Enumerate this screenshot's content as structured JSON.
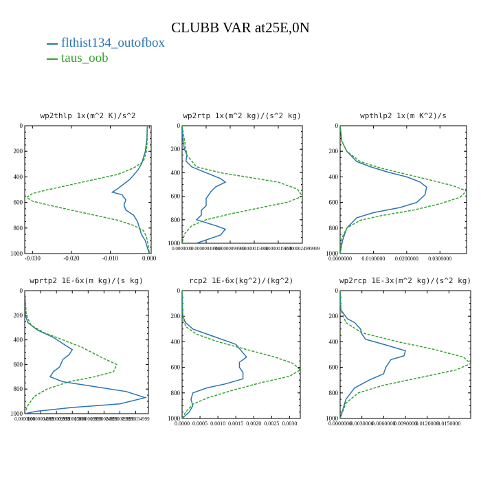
{
  "page": {
    "title": "CLUBB VAR at25E,0N",
    "legend": [
      {
        "label": "flthist134_outofbox",
        "color": "#2b74b3"
      },
      {
        "label": "taus_oob",
        "color": "#35a22f"
      }
    ]
  },
  "chart_data": [
    {
      "type": "line",
      "title": "wp2thlp  1x(m^2 K)/s^2",
      "xlim": [
        -0.032,
        0.0005
      ],
      "ylim": [
        1000,
        0
      ],
      "yticks": [
        0,
        200,
        400,
        600,
        800,
        1000
      ],
      "xticks": [
        -0.03,
        -0.02,
        -0.01,
        0.0
      ],
      "xticklabels": [
        "-0.030",
        "-0.020",
        "-0.010",
        "0.000"
      ],
      "series": [
        {
          "name": "flthist134_outofbox",
          "color": "#2b74b3",
          "dashed": false,
          "x": [
            -0.0005,
            -0.0006,
            -0.0008,
            -0.001,
            -0.0015,
            -0.002,
            -0.003,
            -0.005,
            -0.008,
            -0.0095,
            -0.007,
            -0.006,
            -0.0065,
            -0.006,
            -0.004,
            -0.003,
            -0.0025,
            -0.002,
            -0.001,
            0.0
          ],
          "y": [
            0,
            100,
            150,
            200,
            250,
            300,
            350,
            420,
            490,
            520,
            540,
            580,
            620,
            660,
            700,
            750,
            800,
            850,
            900,
            1000
          ]
        },
        {
          "name": "taus_oob",
          "color": "#35a22f",
          "dashed": true,
          "x": [
            -0.0005,
            -0.0005,
            -0.0007,
            -0.0015,
            -0.004,
            -0.008,
            -0.014,
            -0.02,
            -0.026,
            -0.03,
            -0.0315,
            -0.03,
            -0.026,
            -0.02,
            -0.014,
            -0.008,
            -0.004,
            -0.0015,
            -0.0007,
            -0.0003,
            0.0
          ],
          "y": [
            0,
            100,
            200,
            280,
            330,
            380,
            420,
            460,
            500,
            530,
            560,
            590,
            620,
            660,
            700,
            740,
            780,
            820,
            870,
            930,
            1000
          ]
        }
      ]
    },
    {
      "type": "line",
      "title": "wp2rtp  1x(m^2 kg)/(s^2 kg)",
      "xlim": [
        0,
        2.5e-06
      ],
      "ylim": [
        1000,
        0
      ],
      "yticks": [
        0,
        200,
        400,
        600,
        800,
        1000
      ],
      "xticks": [
        0,
        5e-07,
        1e-06,
        1.5e-06,
        2e-06,
        2.5e-06
      ],
      "xticklabels": [
        "0.0000000",
        "0.00000049999",
        "0.00000099999",
        "0.0000015000",
        "0.0000019999",
        "0.0000024999999"
      ],
      "series": [
        {
          "name": "flthist134_outofbox",
          "color": "#2b74b3",
          "dashed": false,
          "x": [
            0,
            1e-08,
            5e-08,
            1e-07,
            8e-08,
            2e-07,
            5e-07,
            8e-07,
            9e-07,
            7e-07,
            6e-07,
            5e-07,
            5e-07,
            4e-07,
            4e-07,
            3e-07,
            7e-07,
            9e-07,
            8e-07,
            3e-07
          ],
          "y": [
            0,
            100,
            200,
            250,
            300,
            350,
            400,
            450,
            480,
            520,
            560,
            620,
            680,
            720,
            760,
            800,
            850,
            880,
            930,
            1000
          ]
        },
        {
          "name": "taus_oob",
          "color": "#35a22f",
          "dashed": true,
          "x": [
            0,
            1e-07,
            3e-07,
            8e-07,
            1.4e-06,
            2e-06,
            2.4e-06,
            2.5e-06,
            2.2e-06,
            1.6e-06,
            1e-06,
            5e-07,
            2e-07,
            5e-08,
            0
          ],
          "y": [
            0,
            250,
            350,
            400,
            440,
            480,
            540,
            600,
            650,
            700,
            750,
            800,
            850,
            920,
            1000
          ]
        }
      ]
    },
    {
      "type": "line",
      "title": "wpthlp2  1x(m K^2)/s",
      "xlim": [
        0,
        0.038
      ],
      "ylim": [
        1000,
        0
      ],
      "yticks": [
        0,
        200,
        400,
        600,
        800,
        1000
      ],
      "xticks": [
        0,
        0.01,
        0.02,
        0.03
      ],
      "xticklabels": [
        "0.0000000",
        "0.0100000",
        "0.0200000",
        "0.0300000"
      ],
      "series": [
        {
          "name": "flthist134_outofbox",
          "color": "#2b74b3",
          "dashed": false,
          "x": [
            0,
            0.0005,
            0.002,
            0.005,
            0.009,
            0.014,
            0.02,
            0.024,
            0.026,
            0.0255,
            0.023,
            0.018,
            0.01,
            0.005,
            0.002,
            0.0007,
            0
          ],
          "y": [
            0,
            120,
            200,
            280,
            320,
            360,
            400,
            440,
            480,
            540,
            600,
            640,
            680,
            720,
            800,
            900,
            1000
          ]
        },
        {
          "name": "taus_oob",
          "color": "#35a22f",
          "dashed": true,
          "x": [
            0,
            0.0005,
            0.002,
            0.006,
            0.012,
            0.02,
            0.028,
            0.034,
            0.038,
            0.036,
            0.03,
            0.022,
            0.013,
            0.006,
            0.002,
            0.0005,
            0
          ],
          "y": [
            0,
            120,
            200,
            280,
            330,
            380,
            430,
            470,
            510,
            560,
            610,
            660,
            700,
            740,
            800,
            880,
            1000
          ]
        }
      ]
    },
    {
      "type": "line",
      "title": "wprtp2  1E-6x(m kg)/(s kg)",
      "xlim": [
        0,
        3.9e-06
      ],
      "ylim": [
        1000,
        0
      ],
      "yticks": [
        0,
        200,
        400,
        600,
        800,
        1000
      ],
      "xticks": [
        0,
        5e-07,
        1e-06,
        1.5e-06,
        2e-06,
        2.5e-06,
        3e-06,
        3.5e-06
      ],
      "xticklabels": [
        "0.0000000",
        "0.0000004999",
        "0.0000009999",
        "0.0000015000",
        "0.0000019999",
        "0.0000024999",
        "0.0000029999",
        "0.0000034999"
      ],
      "series": [
        {
          "name": "flthist134_outofbox",
          "color": "#2b74b3",
          "dashed": false,
          "x": [
            0,
            2e-08,
            1e-07,
            4e-07,
            9e-07,
            1.5e-06,
            1.4e-06,
            1.2e-06,
            1.1e-06,
            9e-07,
            8e-07,
            1.2e-06,
            2.2e-06,
            3.2e-06,
            3.8e-06,
            3e-06,
            1.5e-06,
            4e-07,
            0
          ],
          "y": [
            0,
            200,
            260,
            320,
            380,
            480,
            520,
            560,
            620,
            660,
            700,
            740,
            780,
            820,
            870,
            920,
            950,
            980,
            1000
          ]
        },
        {
          "name": "taus_oob",
          "color": "#35a22f",
          "dashed": true,
          "x": [
            0,
            5e-08,
            2e-07,
            6e-07,
            1.2e-06,
            1.8e-06,
            2.4e-06,
            2.9e-06,
            2.8e-06,
            2.2e-06,
            1.4e-06,
            7e-07,
            3e-07,
            8e-08,
            0
          ],
          "y": [
            0,
            200,
            280,
            340,
            400,
            460,
            540,
            600,
            660,
            700,
            740,
            800,
            860,
            940,
            1000
          ]
        }
      ]
    },
    {
      "type": "line",
      "title": "rcp2  1E-6x(kg^2)/(kg^2)",
      "xlim": [
        0,
        0.0033
      ],
      "ylim": [
        1000,
        0
      ],
      "yticks": [
        0,
        200,
        400,
        600,
        800,
        1000
      ],
      "xticks": [
        0,
        0.0005,
        0.001,
        0.0015,
        0.002,
        0.0025,
        0.003
      ],
      "xticklabels": [
        "0.0000",
        "0.0005",
        "0.0010",
        "0.0015",
        "0.0020",
        "0.0025",
        "0.0030"
      ],
      "series": [
        {
          "name": "flthist134_outofbox",
          "color": "#2b74b3",
          "dashed": false,
          "x": [
            0,
            2e-05,
            0.0001,
            0.0003,
            0.0009,
            0.0015,
            0.0018,
            0.0016,
            0.0016,
            0.0017,
            0.0017,
            0.0012,
            0.0007,
            0.0003,
            0.00025,
            0.0003,
            0.0002,
            0
          ],
          "y": [
            0,
            200,
            250,
            300,
            360,
            420,
            520,
            560,
            600,
            640,
            690,
            730,
            760,
            800,
            850,
            900,
            950,
            1000
          ]
        },
        {
          "name": "taus_oob",
          "color": "#35a22f",
          "dashed": true,
          "x": [
            0,
            2e-05,
            0.0001,
            0.0004,
            0.001,
            0.0018,
            0.0026,
            0.0031,
            0.0033,
            0.003,
            0.0022,
            0.0014,
            0.0007,
            0.0003,
            0.0001,
            0
          ],
          "y": [
            0,
            200,
            280,
            340,
            400,
            460,
            520,
            570,
            620,
            670,
            720,
            780,
            840,
            890,
            950,
            1000
          ]
        }
      ]
    },
    {
      "type": "line",
      "title": "wp2rcp  1E-3x(m^2 kg)/(s^2 kg)",
      "xlim": [
        0,
        0.018
      ],
      "ylim": [
        1000,
        0
      ],
      "yticks": [
        0,
        200,
        400,
        600,
        800,
        1000
      ],
      "xticks": [
        0,
        0.003,
        0.006,
        0.009,
        0.012,
        0.015
      ],
      "xticklabels": [
        "0.0000000",
        "0.0030000",
        "0.0060000",
        "0.0090000",
        "0.0120000",
        "0.0150000"
      ],
      "series": [
        {
          "name": "flthist134_outofbox",
          "color": "#2b74b3",
          "dashed": false,
          "x": [
            0,
            0.0001,
            0.001,
            0.002,
            0.0028,
            0.003,
            0.0035,
            0.006,
            0.009,
            0.0088,
            0.007,
            0.0063,
            0.006,
            0.004,
            0.002,
            0.0008,
            0
          ],
          "y": [
            0,
            150,
            220,
            250,
            300,
            340,
            380,
            420,
            470,
            510,
            540,
            600,
            650,
            700,
            760,
            850,
            1000
          ]
        },
        {
          "name": "taus_oob",
          "color": "#35a22f",
          "dashed": true,
          "x": [
            0,
            0.0001,
            0.0008,
            0.003,
            0.008,
            0.013,
            0.017,
            0.018,
            0.016,
            0.011,
            0.006,
            0.0025,
            0.0008,
            0
          ],
          "y": [
            0,
            150,
            250,
            330,
            400,
            460,
            520,
            570,
            620,
            680,
            740,
            800,
            880,
            1000
          ]
        }
      ]
    }
  ]
}
